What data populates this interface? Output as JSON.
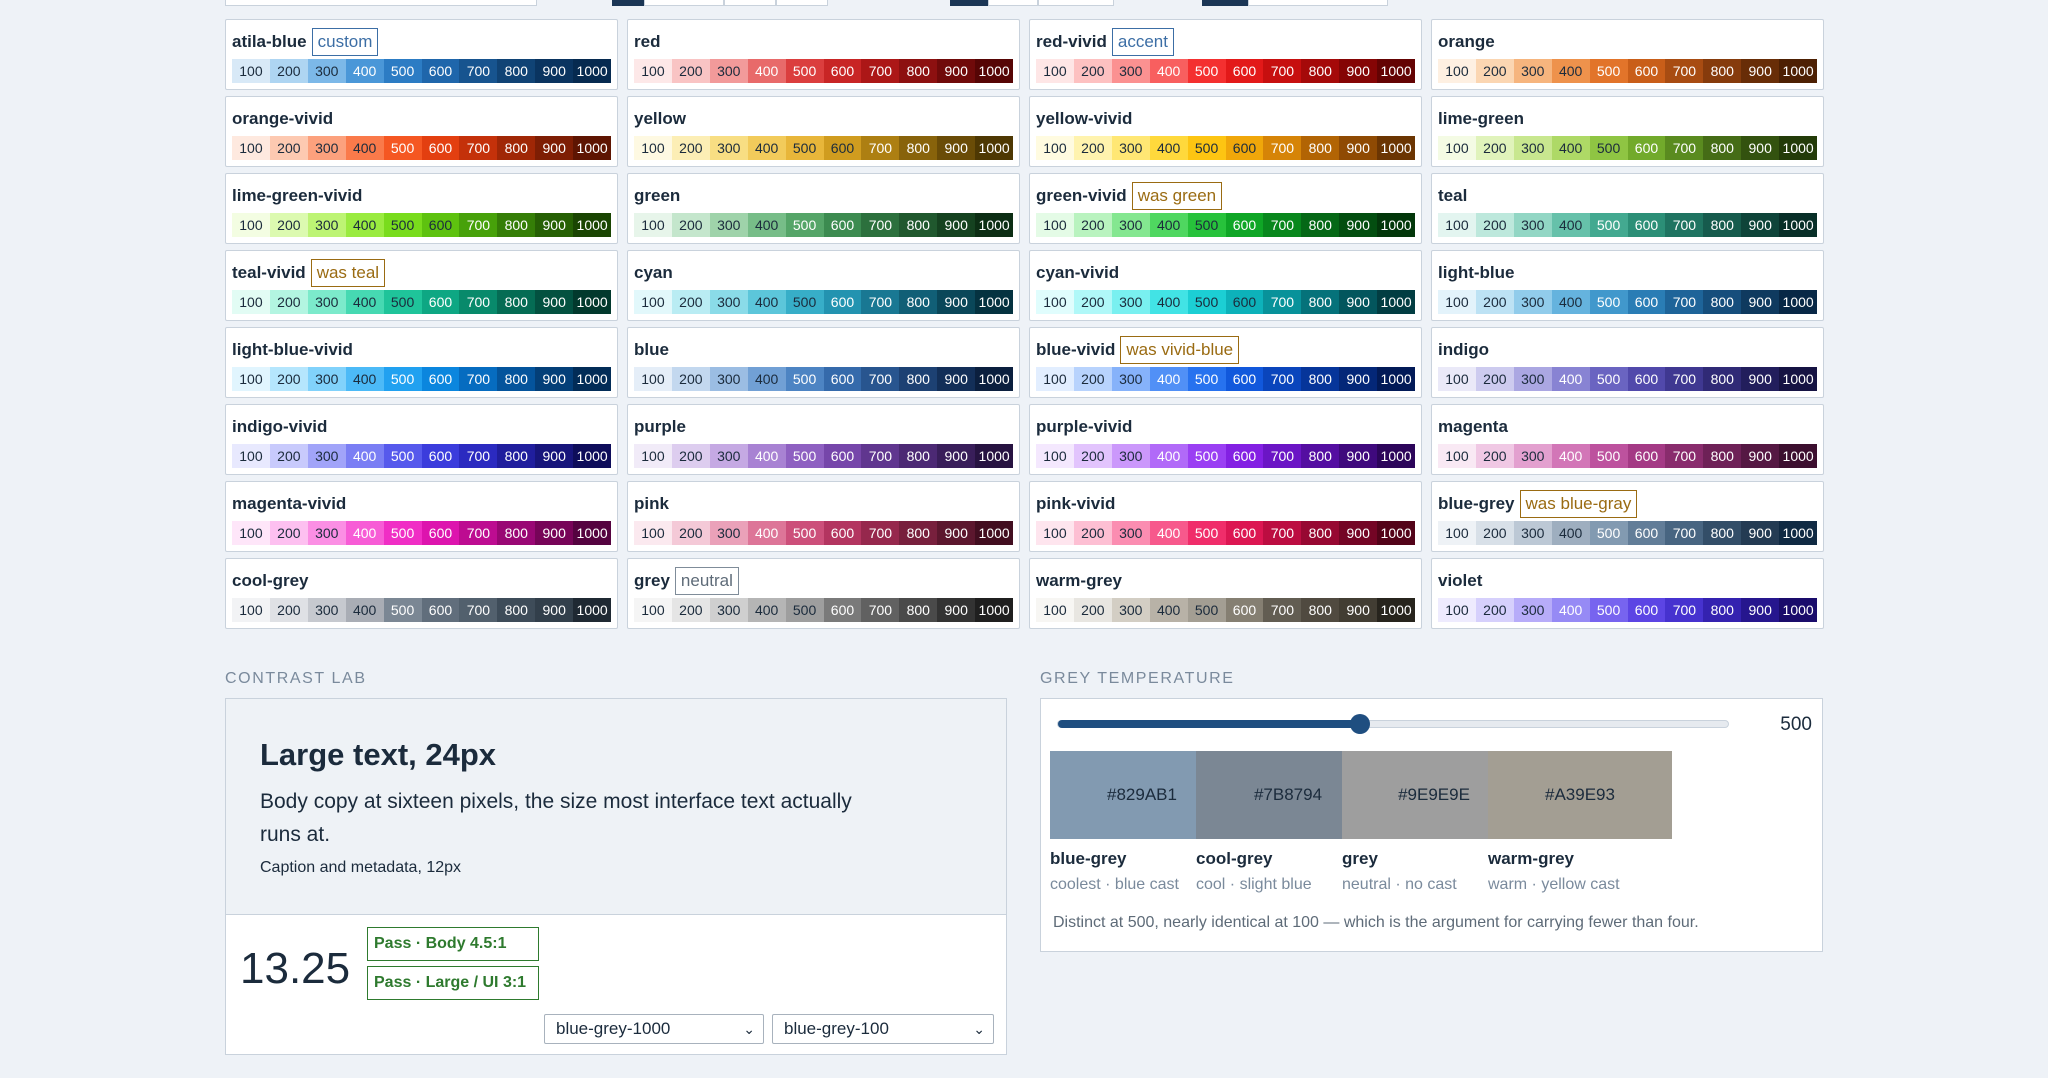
{
  "steps": [
    "100",
    "200",
    "300",
    "400",
    "500",
    "600",
    "700",
    "800",
    "900",
    "1000"
  ],
  "palettes": [
    {
      "name": "atila-blue",
      "tag": "custom",
      "tag_kind": "custom",
      "colors": [
        "#d8e9f7",
        "#aed5f2",
        "#7cb8e8",
        "#4a97d8",
        "#2c7cc4",
        "#1f66ab",
        "#17548f",
        "#104375",
        "#0a3460",
        "#062a50"
      ]
    },
    {
      "name": "red",
      "colors": [
        "#fde8e8",
        "#f9c4c4",
        "#f29a9a",
        "#e86a6a",
        "#db3e3e",
        "#c82525",
        "#ac1717",
        "#8d1010",
        "#700a0a",
        "#560505"
      ]
    },
    {
      "name": "red-vivid",
      "tag": "accent",
      "tag_kind": "custom",
      "colors": [
        "#fee6e6",
        "#fdc1c1",
        "#fb9191",
        "#f85f5f",
        "#f43030",
        "#e31919",
        "#c70f0f",
        "#a50909",
        "#850505",
        "#640303"
      ]
    },
    {
      "name": "orange",
      "colors": [
        "#fef0e2",
        "#fbd6b2",
        "#f6b57e",
        "#ee924c",
        "#e2742a",
        "#c95e19",
        "#a84c12",
        "#863b0c",
        "#682d07",
        "#4d2003"
      ]
    },
    {
      "name": "orange-vivid",
      "colors": [
        "#fee9df",
        "#fdc9b1",
        "#fca17d",
        "#fa7a4a",
        "#f55722",
        "#e33f10",
        "#c4310a",
        "#a02706",
        "#7e1e04",
        "#5e1502"
      ]
    },
    {
      "name": "yellow",
      "colors": [
        "#fef9e2",
        "#fceeb5",
        "#f8de83",
        "#f2cb5b",
        "#e8b63a",
        "#d09c1f",
        "#ad7f12",
        "#88630b",
        "#6a4c07",
        "#4e3803"
      ]
    },
    {
      "name": "yellow-vivid",
      "colors": [
        "#fffbe0",
        "#fff3ae",
        "#ffe774",
        "#ffd93c",
        "#fdc512",
        "#f0a70a",
        "#d68407",
        "#b26404",
        "#8f4a03",
        "#6b3502"
      ]
    },
    {
      "name": "lime-green",
      "colors": [
        "#f4fbe4",
        "#e0f3bb",
        "#c8e78f",
        "#aed966",
        "#8fc543",
        "#72aa2b",
        "#5a8b1f",
        "#456c16",
        "#33520f",
        "#233b09"
      ]
    },
    {
      "name": "lime-green-vivid",
      "colors": [
        "#f3fde2",
        "#dcfab0",
        "#bdf474",
        "#9aeb40",
        "#79dc1c",
        "#5ec20f",
        "#47a10a",
        "#357e07",
        "#266004",
        "#1a4502"
      ]
    },
    {
      "name": "green",
      "colors": [
        "#e7f5ea",
        "#c4e6cc",
        "#9fd3aa",
        "#77bd88",
        "#55a568",
        "#3c8b50",
        "#2c703d",
        "#20582e",
        "#154220",
        "#0c2e14"
      ]
    },
    {
      "name": "green-vivid",
      "tag": "was green",
      "tag_kind": "legacy",
      "colors": [
        "#e4fbe6",
        "#b9f3bf",
        "#84e790",
        "#4fd760",
        "#27c23b",
        "#0fa626",
        "#08871d",
        "#056816",
        "#034e10",
        "#02370a"
      ]
    },
    {
      "name": "teal",
      "colors": [
        "#e3f5f0",
        "#bde8dc",
        "#92d6c4",
        "#66c1aa",
        "#43a990",
        "#2c8f77",
        "#1f7461",
        "#165b4d",
        "#0e4439",
        "#082f28"
      ]
    },
    {
      "name": "teal-vivid",
      "tag": "was teal",
      "tag_kind": "legacy",
      "colors": [
        "#e2fcf4",
        "#b3f5e1",
        "#7ceacb",
        "#46d9b2",
        "#1fc49a",
        "#0ea783",
        "#088a6b",
        "#056c54",
        "#035140",
        "#02392d"
      ]
    },
    {
      "name": "cyan",
      "colors": [
        "#e2f8fb",
        "#b9ecf3",
        "#8adbe8",
        "#5cc6da",
        "#37aec8",
        "#2393b0",
        "#197893",
        "#115f76",
        "#0a4759",
        "#053240"
      ]
    },
    {
      "name": "cyan-vivid",
      "colors": [
        "#e0fdfd",
        "#b0f8f8",
        "#79f0f0",
        "#42e3e5",
        "#1ccfd4",
        "#0db2ba",
        "#08929a",
        "#05727a",
        "#03565d",
        "#023d42"
      ]
    },
    {
      "name": "light-blue",
      "colors": [
        "#e3f3fb",
        "#bde2f4",
        "#91cceb",
        "#65b3de",
        "#4198cc",
        "#2a7db5",
        "#1e6499",
        "#164e7c",
        "#0f3a5f",
        "#082846"
      ]
    },
    {
      "name": "light-blue-vivid",
      "colors": [
        "#e1f5fe",
        "#b5e6fd",
        "#81d2fb",
        "#4cbaf7",
        "#21a1f0",
        "#0b86de",
        "#066cc0",
        "#04549c",
        "#033f78",
        "#022c57"
      ]
    },
    {
      "name": "blue",
      "colors": [
        "#e5eef8",
        "#c3d8ef",
        "#9bbde3",
        "#71a0d5",
        "#4d84c3",
        "#356aab",
        "#28558f",
        "#1d4173",
        "#132f58",
        "#0b1f3e"
      ]
    },
    {
      "name": "blue-vivid",
      "tag": "was vivid-blue",
      "tag_kind": "legacy",
      "colors": [
        "#e2eeff",
        "#b8d3fd",
        "#86b2fa",
        "#5190f6",
        "#2772ef",
        "#1158dc",
        "#0a45bc",
        "#06359a",
        "#042778",
        "#021a57"
      ]
    },
    {
      "name": "indigo",
      "colors": [
        "#eae9f8",
        "#cdcbef",
        "#aba7e2",
        "#8883d3",
        "#6a64c1",
        "#5149ab",
        "#3f3891",
        "#302a76",
        "#221e5c",
        "#161343"
      ]
    },
    {
      "name": "indigo-vivid",
      "colors": [
        "#e8e9fe",
        "#c8cafc",
        "#a1a4f9",
        "#7a7ef4",
        "#5659ec",
        "#3b3cdc",
        "#2b2ac0",
        "#201e9d",
        "#17157b",
        "#0e0d5a"
      ]
    },
    {
      "name": "purple",
      "colors": [
        "#f1ebf8",
        "#ddcdef",
        "#c5a9e3",
        "#a882d3",
        "#8e60c1",
        "#7646aa",
        "#60368f",
        "#4c2974",
        "#391e5a",
        "#271341"
      ]
    },
    {
      "name": "purple-vivid",
      "colors": [
        "#f4e8fe",
        "#e2c4fd",
        "#cb98fb",
        "#b16af8",
        "#9a3ff3",
        "#8320e3",
        "#6b15c5",
        "#540ea1",
        "#3f097d",
        "#2c055a"
      ]
    },
    {
      "name": "magenta",
      "colors": [
        "#f9e9f4",
        "#f0c8e4",
        "#e3a0cf",
        "#d276b7",
        "#bd529e",
        "#a43a85",
        "#892c6d",
        "#6e2157",
        "#551843",
        "#3c0f2f"
      ]
    },
    {
      "name": "magenta-vivid",
      "colors": [
        "#fee6f9",
        "#fdc0f0",
        "#fb8fe4",
        "#f75cd6",
        "#f02ec5",
        "#dd14ae",
        "#bd0c91",
        "#990774",
        "#770458",
        "#550340"
      ]
    },
    {
      "name": "pink",
      "colors": [
        "#fbe9ef",
        "#f4c9d7",
        "#eaa1b9",
        "#dd7598",
        "#cc4f7a",
        "#b33560",
        "#96284d",
        "#78203d",
        "#5c172e",
        "#420e20"
      ]
    },
    {
      "name": "pink-vivid",
      "colors": [
        "#fee5ee",
        "#fdbfd3",
        "#fb8db1",
        "#f7598c",
        "#f02d6a",
        "#dc1652",
        "#bc0d41",
        "#970832",
        "#740525",
        "#530319"
      ]
    },
    {
      "name": "blue-grey",
      "tag": "was blue-gray",
      "tag_kind": "legacy",
      "colors": [
        "#eef2f6",
        "#d8e0e8",
        "#bcc8d5",
        "#9eaebf",
        "#829ab1",
        "#627d98",
        "#486581",
        "#334e68",
        "#243b53",
        "#102a43"
      ]
    },
    {
      "name": "cool-grey",
      "colors": [
        "#f2f3f5",
        "#dfe1e5",
        "#c6c9cf",
        "#a9adb5",
        "#7b8794",
        "#616e7c",
        "#52606d",
        "#3e4c59",
        "#323f4b",
        "#1f2933"
      ]
    },
    {
      "name": "grey",
      "tag": "neutral",
      "tag_kind": "neutral",
      "colors": [
        "#f5f5f5",
        "#e5e5e5",
        "#cfcfcf",
        "#b5b5b5",
        "#9e9e9e",
        "#7a7a7a",
        "#616161",
        "#4a4a4a",
        "#333333",
        "#1f1f1f"
      ]
    },
    {
      "name": "warm-grey",
      "colors": [
        "#f7f6f3",
        "#e8e6e1",
        "#d3cec4",
        "#b8b2a7",
        "#a39e93",
        "#857f72",
        "#625d52",
        "#504a40",
        "#423d33",
        "#27241d"
      ]
    },
    {
      "name": "violet",
      "colors": [
        "#eeebfe",
        "#d6d0fc",
        "#b7acf9",
        "#968af5",
        "#7764ef",
        "#5c45e4",
        "#4632cf",
        "#3422b0",
        "#26168e",
        "#1a0c6b"
      ]
    }
  ],
  "contrast_lab": {
    "label": "CONTRAST LAB",
    "large_text": "Large text, 24px",
    "body_text": "Body copy at sixteen pixels, the size most interface text actually runs at.",
    "caption_text": "Caption and metadata, 12px",
    "ratio": "13.25",
    "badge_body": "Pass · Body 4.5:1",
    "badge_large": "Pass · Large / UI 3:1",
    "foreground": "blue-grey-1000",
    "background": "blue-grey-100",
    "fg_color": "#102a43",
    "bg_color": "#eef2f6"
  },
  "grey_temperature": {
    "label": "GREY TEMPERATURE",
    "slider_value": "500",
    "slider_fraction": 0.45,
    "chips": [
      {
        "hex": "#829AB1",
        "name": "blue-grey",
        "desc": "coolest · blue cast"
      },
      {
        "hex": "#7B8794",
        "name": "cool-grey",
        "desc": "cool · slight blue"
      },
      {
        "hex": "#9E9E9E",
        "name": "grey",
        "desc": "neutral · no cast"
      },
      {
        "hex": "#A39E93",
        "name": "warm-grey",
        "desc": "warm · yellow cast"
      }
    ],
    "note": "Distinct at 500, nearly identical at 100 — which is the argument for carrying fewer than four."
  }
}
